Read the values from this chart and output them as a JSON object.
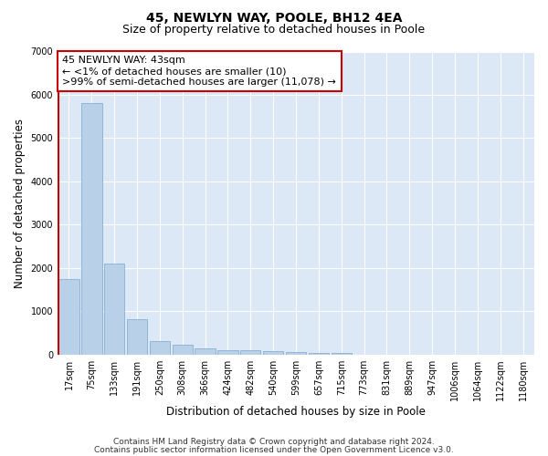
{
  "title": "45, NEWLYN WAY, POOLE, BH12 4EA",
  "subtitle": "Size of property relative to detached houses in Poole",
  "xlabel": "Distribution of detached houses by size in Poole",
  "ylabel": "Number of detached properties",
  "categories": [
    "17sqm",
    "75sqm",
    "133sqm",
    "191sqm",
    "250sqm",
    "308sqm",
    "366sqm",
    "424sqm",
    "482sqm",
    "540sqm",
    "599sqm",
    "657sqm",
    "715sqm",
    "773sqm",
    "831sqm",
    "889sqm",
    "947sqm",
    "1006sqm",
    "1064sqm",
    "1122sqm",
    "1180sqm"
  ],
  "values": [
    1750,
    5800,
    2100,
    820,
    310,
    215,
    145,
    105,
    95,
    70,
    45,
    30,
    25,
    0,
    0,
    0,
    0,
    0,
    0,
    0,
    0
  ],
  "bar_color": "#b8d0e8",
  "bar_edge_color": "#7aa8cc",
  "highlight_color": "#cc0000",
  "annotation_line1": "45 NEWLYN WAY: 43sqm",
  "annotation_line2": "← <1% of detached houses are smaller (10)",
  "annotation_line3": ">99% of semi-detached houses are larger (11,078) →",
  "ylim": [
    0,
    7000
  ],
  "yticks": [
    0,
    1000,
    2000,
    3000,
    4000,
    5000,
    6000,
    7000
  ],
  "footer_line1": "Contains HM Land Registry data © Crown copyright and database right 2024.",
  "footer_line2": "Contains public sector information licensed under the Open Government Licence v3.0.",
  "plot_bg_color": "#dce8f5",
  "title_fontsize": 10,
  "subtitle_fontsize": 9,
  "axis_label_fontsize": 8.5,
  "tick_fontsize": 7,
  "annotation_fontsize": 8,
  "footer_fontsize": 6.5
}
